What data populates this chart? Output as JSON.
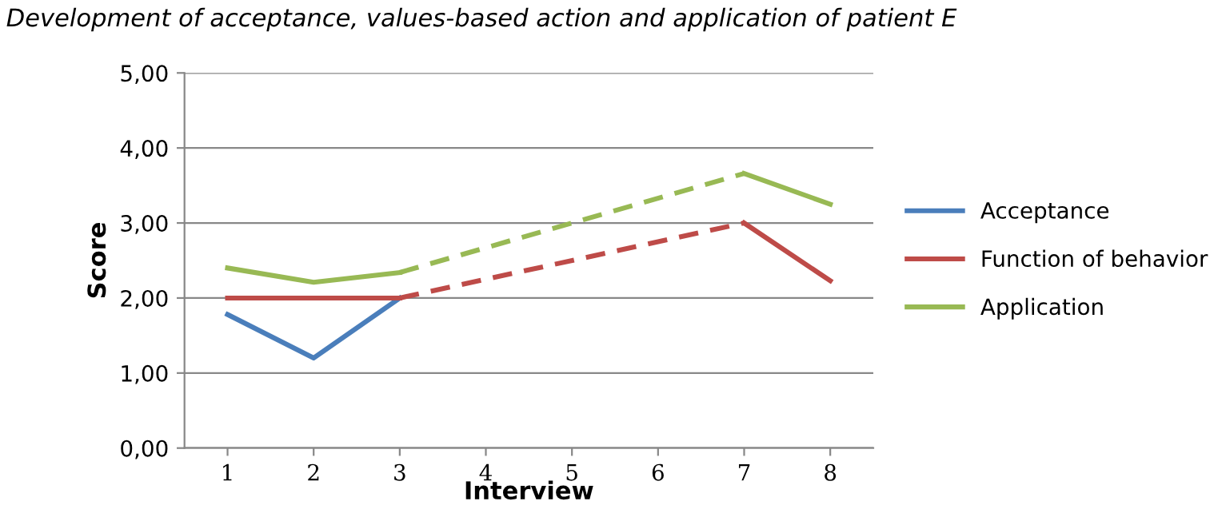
{
  "chart_data": {
    "type": "line",
    "title": "Development of acceptance, values-based action and application of patient E",
    "xlabel": "Interview",
    "ylabel": "Score",
    "xlim": [
      0.5,
      8.5
    ],
    "xticks": [
      1,
      2,
      3,
      4,
      5,
      6,
      7,
      8
    ],
    "ylim": [
      0,
      5
    ],
    "yticks": [
      {
        "value": 0,
        "label": "0,00"
      },
      {
        "value": 1,
        "label": "1,00"
      },
      {
        "value": 2,
        "label": "2,00"
      },
      {
        "value": 3,
        "label": "3,00"
      },
      {
        "value": 4,
        "label": "4,00"
      },
      {
        "value": 5,
        "label": "5,00"
      }
    ],
    "grid": "y",
    "legend": "right",
    "marker": "none",
    "series": [
      {
        "name": "Acceptance",
        "color": "#4a7ebb",
        "x": [
          1,
          2,
          3
        ],
        "values": [
          1.78,
          1.2,
          2.0
        ],
        "line_style": "solid"
      },
      {
        "name": "Function of behavior",
        "color": "#be4b48",
        "x": [
          1,
          2,
          3
        ],
        "values": [
          2.0,
          2.0,
          2.0
        ],
        "line_style": "solid"
      },
      {
        "color": "#be4b48",
        "x": [
          3,
          7
        ],
        "values": [
          2.0,
          3.0
        ],
        "line_style": "dashed"
      },
      {
        "color": "#be4b48",
        "x": [
          7,
          8
        ],
        "values": [
          3.0,
          2.23
        ],
        "line_style": "solid"
      },
      {
        "name": "Application",
        "color": "#98b954",
        "x": [
          1,
          2,
          3
        ],
        "values": [
          2.4,
          2.21,
          2.34
        ],
        "line_style": "solid"
      },
      {
        "color": "#98b954",
        "x": [
          3,
          7
        ],
        "values": [
          2.34,
          3.66
        ],
        "line_style": "dashed"
      },
      {
        "color": "#98b954",
        "x": [
          7,
          8
        ],
        "values": [
          3.66,
          3.25
        ],
        "line_style": "solid"
      }
    ]
  }
}
